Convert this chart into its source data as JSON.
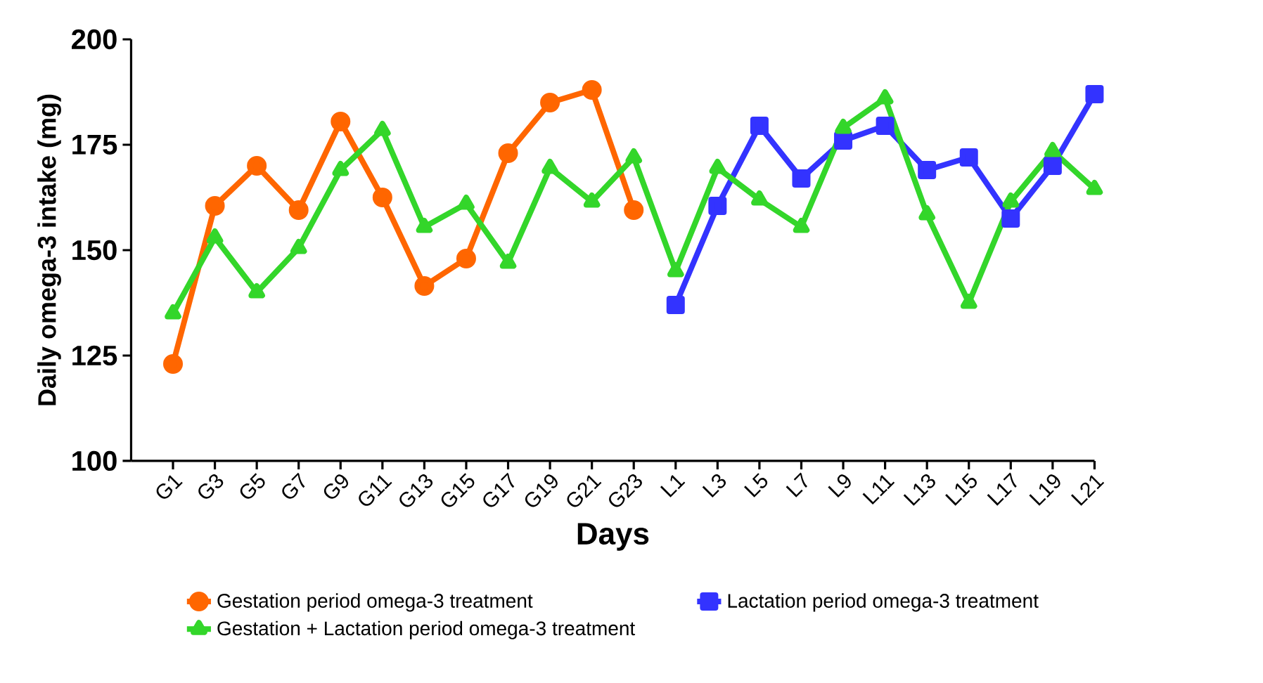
{
  "chart_data": {
    "type": "line",
    "xlabel": "Days",
    "ylabel": "Daily omega-3 intake (mg)",
    "categories": [
      "G1",
      "G3",
      "G5",
      "G7",
      "G9",
      "G11",
      "G13",
      "G15",
      "G17",
      "G19",
      "G21",
      "G23",
      "L1",
      "L3",
      "L5",
      "L7",
      "L9",
      "L11",
      "L13",
      "L15",
      "L17",
      "L19",
      "L21"
    ],
    "ylim": [
      100,
      200
    ],
    "yticks": [
      100,
      125,
      150,
      175,
      200
    ],
    "grid": false,
    "legend": "bottom",
    "line_style": "solid",
    "series": [
      {
        "name": "Gestation period omega-3 treatment",
        "color": "#ff6600",
        "marker": "circle",
        "values": [
          123,
          160.5,
          170,
          159.5,
          180.5,
          162.5,
          141.5,
          148,
          173,
          185,
          188,
          159.5,
          null,
          null,
          null,
          null,
          null,
          null,
          null,
          null,
          null,
          null,
          null
        ]
      },
      {
        "name": "Lactation period omega-3 treatment",
        "color": "#3333ff",
        "marker": "square",
        "values": [
          null,
          null,
          null,
          null,
          null,
          null,
          null,
          null,
          null,
          null,
          null,
          null,
          137,
          160.5,
          179.5,
          167,
          176,
          179.5,
          169,
          172,
          157.5,
          170,
          187
        ]
      },
      {
        "name": "Gestation + Lactation period omega-3 treatment",
        "color": "#33d62a",
        "marker": "triangle",
        "values": [
          135,
          153,
          140,
          150.5,
          169,
          178.5,
          155.5,
          161,
          147,
          169.5,
          161.5,
          172,
          145,
          169.5,
          162,
          155.5,
          179,
          186,
          158.5,
          137.5,
          161.5,
          173.5,
          164.5
        ]
      }
    ]
  }
}
